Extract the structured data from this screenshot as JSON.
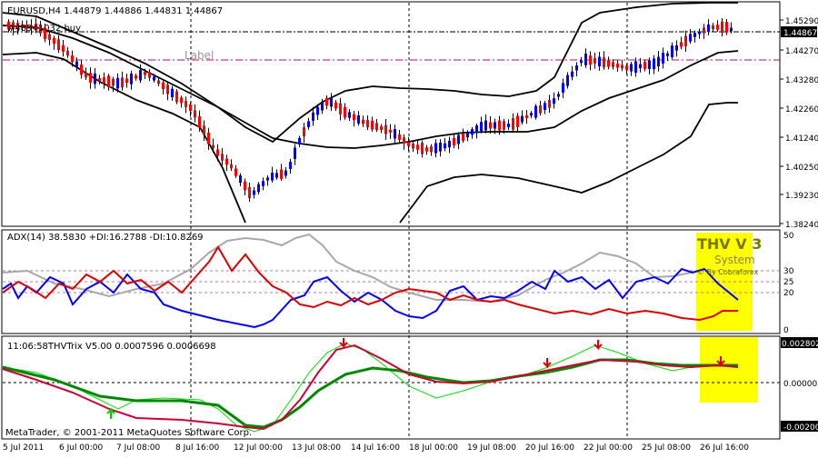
{
  "main": {
    "info": "EURUSD,H4  1.44879 1.44886 1.44831 1.44867",
    "order_label": "#48941032 buy",
    "hline_label": "Label",
    "price_ticks": [
      "1.45290",
      "1.44270",
      "1.43280",
      "1.42260",
      "1.41240",
      "1.40250",
      "1.39230",
      "1.38240"
    ],
    "current_price": "1.44867"
  },
  "adx": {
    "info": "ADX(14) 38.5830 +DI:16.2788 -DI:10.8269",
    "ticks": [
      "50",
      "30",
      "25",
      "20",
      "0"
    ],
    "banner_title": "THV V 3",
    "banner_sub": "System",
    "banner_credit": "© By Cobraforex"
  },
  "trix": {
    "info": "11:06:58THVTrix V5.00 0.0007596 0.0006698",
    "ticks": [
      "0.002802",
      "0.00000",
      "-0.00200"
    ],
    "copyright": "MetaTrader, © 2001-2011 MetaQuotes Software Corp."
  },
  "time_axis": [
    "5 Jul 2011",
    "6 Jul 00:00",
    "7 Jul 08:00",
    "8 Jul 16:00",
    "12 Jul 00:00",
    "13 Jul 08:00",
    "14 Jul 16:00",
    "18 Jul 00:00",
    "19 Jul 08:00",
    "20 Jul 16:00",
    "22 Jul 00:00",
    "25 Jul 08:00",
    "26 Jul 16:00"
  ],
  "colors": {
    "bull": "#0000ff",
    "bear": "#ff0000",
    "adx_line": "#a0a0a0",
    "plus_di": "#0000ff",
    "minus_di": "#dd0000",
    "trix_fast": "#00dd00",
    "trix_slow": "#008800",
    "trix_signal": "#cc0033",
    "banner": "#ffff00"
  }
}
